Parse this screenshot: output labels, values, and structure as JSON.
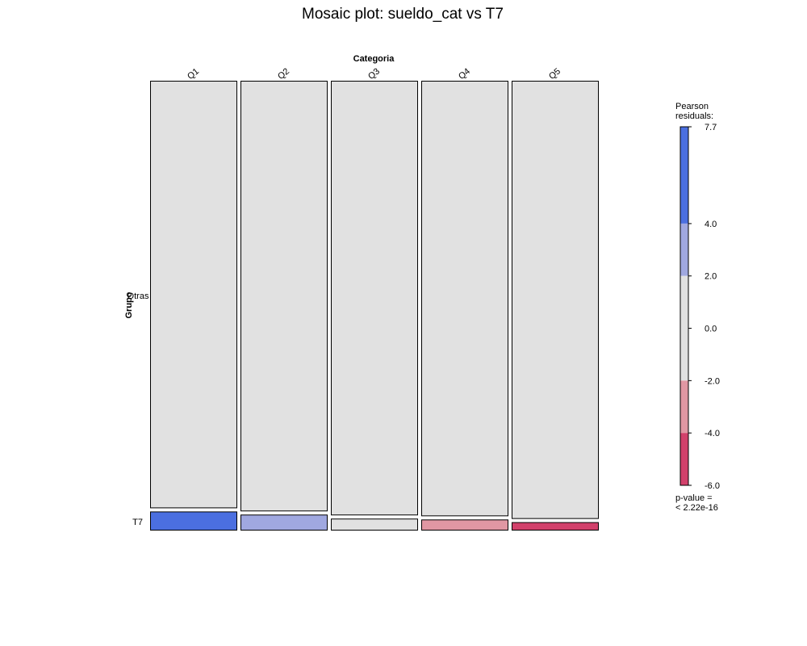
{
  "chart_data": {
    "type": "mosaic",
    "title": "Mosaic plot: sueldo_cat vs T7",
    "column_variable": "Categoria",
    "row_variable": "Grupo",
    "columns": [
      "Q1",
      "Q2",
      "Q3",
      "Q4",
      "Q5"
    ],
    "rows": [
      "Otras",
      "T7"
    ],
    "row_labels_display": [
      "Otras",
      "T7"
    ],
    "column_proportions": [
      0.2,
      0.2,
      0.2,
      0.2,
      0.2
    ],
    "t7_proportion_within_column": [
      0.041,
      0.034,
      0.025,
      0.023,
      0.017
    ],
    "residual_colors_by_cell": {
      "Otras": [
        "#e1e1e1",
        "#e1e1e1",
        "#e1e1e1",
        "#e1e1e1",
        "#e1e1e1"
      ],
      "T7": [
        "#4b6fe0",
        "#a0a8e0",
        "#e1e1e1",
        "#e097a3",
        "#d2416b"
      ]
    },
    "legend": {
      "title_line1": "Pearson",
      "title_line2": "residuals:",
      "range": [
        -6.0,
        7.7
      ],
      "ticks": [
        "7.7",
        "4.0",
        "2.0",
        "0.0",
        "-2.0",
        "-4.0",
        "-6.0"
      ],
      "tick_values": [
        7.7,
        4.0,
        2.0,
        0.0,
        -2.0,
        -4.0,
        -6.0
      ],
      "bands": [
        {
          "from": 4.0,
          "to": 7.7,
          "color": "#4b6fe0"
        },
        {
          "from": 2.0,
          "to": 4.0,
          "color": "#a0a8e0"
        },
        {
          "from": -2.0,
          "to": 2.0,
          "color": "#e1e1e1"
        },
        {
          "from": -4.0,
          "to": -2.0,
          "color": "#e097a3"
        },
        {
          "from": -6.0,
          "to": -4.0,
          "color": "#d2416b"
        }
      ],
      "pvalue_line1": "p-value =",
      "pvalue_line2": "< 2.22e-16"
    }
  }
}
